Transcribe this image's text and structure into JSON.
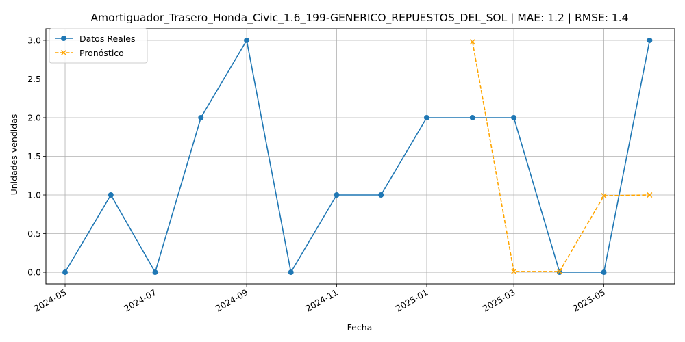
{
  "chart_data": {
    "type": "line",
    "title": "Amortiguador_Trasero_Honda_Civic_1.6_199-GENERICO_REPUESTOS_DEL_SOL | MAE: 1.2 | RMSE: 1.4",
    "xlabel": "Fecha",
    "ylabel": "Unidades vendidas",
    "ylim": [
      -0.15,
      3.15
    ],
    "xlim": [
      "2024-04-18",
      "2025-06-18"
    ],
    "grid": true,
    "legend_position": "top-left",
    "x_ticks": [
      "2024-05",
      "2024-07",
      "2024-09",
      "2024-11",
      "2025-01",
      "2025-03",
      "2025-05"
    ],
    "y_ticks": [
      "0.0",
      "0.5",
      "1.0",
      "1.5",
      "2.0",
      "2.5",
      "3.0"
    ],
    "series": [
      {
        "name": "Datos Reales",
        "color": "#1f77b4",
        "marker": "circle",
        "line_style": "solid",
        "x": [
          "2024-05-01",
          "2024-06-01",
          "2024-07-01",
          "2024-08-01",
          "2024-09-01",
          "2024-10-01",
          "2024-11-01",
          "2024-12-01",
          "2025-01-01",
          "2025-02-01",
          "2025-03-01",
          "2025-04-01",
          "2025-05-01",
          "2025-06-01"
        ],
        "values": [
          0,
          1,
          0,
          2,
          3,
          0,
          1,
          1,
          2,
          2,
          2,
          0,
          0,
          3
        ]
      },
      {
        "name": "Pronóstico",
        "color": "#ffa500",
        "marker": "x",
        "line_style": "dashed",
        "x": [
          "2025-02-01",
          "2025-03-01",
          "2025-04-01",
          "2025-05-01",
          "2025-06-01"
        ],
        "values": [
          2.98,
          0.01,
          0.01,
          0.99,
          1.0
        ]
      }
    ]
  }
}
